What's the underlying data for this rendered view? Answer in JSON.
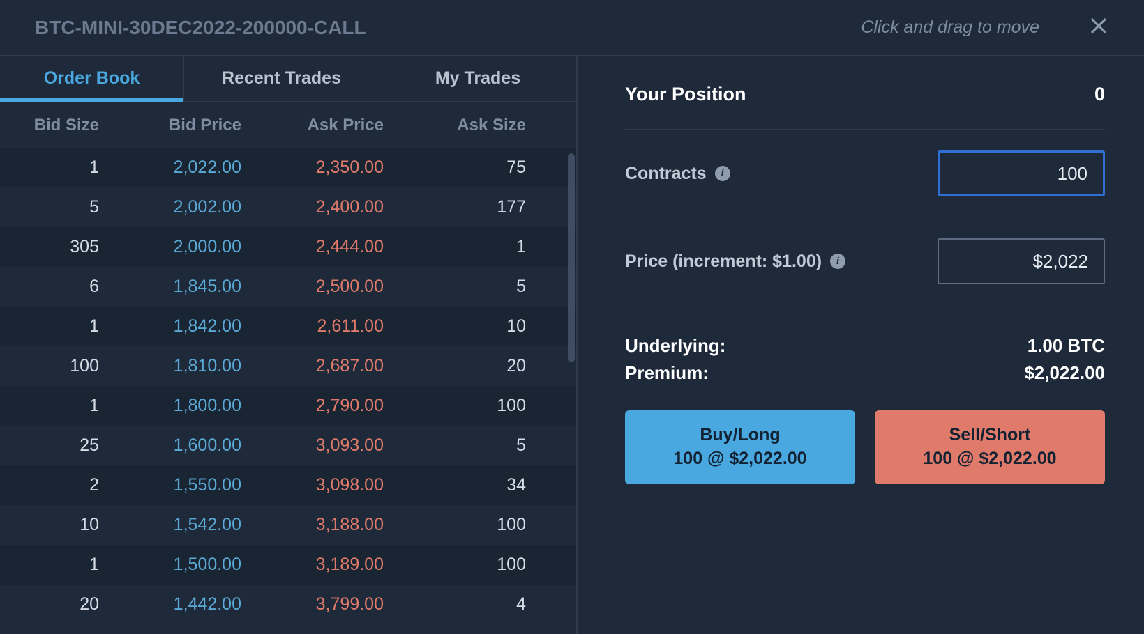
{
  "colors": {
    "background": "#1e2a3a",
    "row_alt": "#1a2533",
    "border": "#2d3b4d",
    "text_muted": "#7f8da2",
    "bid": "#5aa9d6",
    "ask": "#e07a6a",
    "accent": "#4aa8e0",
    "sell": "#e07a6a",
    "white": "#ffffff"
  },
  "header": {
    "title": "BTC-MINI-30DEC2022-200000-CALL",
    "drag_hint": "Click and drag to move"
  },
  "tabs": {
    "order_book": "Order Book",
    "recent_trades": "Recent Trades",
    "my_trades": "My Trades"
  },
  "order_book": {
    "columns": {
      "bid_size": "Bid Size",
      "bid_price": "Bid Price",
      "ask_price": "Ask Price",
      "ask_size": "Ask Size"
    },
    "rows": [
      {
        "bid_size": "1",
        "bid_price": "2,022.00",
        "ask_price": "2,350.00",
        "ask_size": "75"
      },
      {
        "bid_size": "5",
        "bid_price": "2,002.00",
        "ask_price": "2,400.00",
        "ask_size": "177"
      },
      {
        "bid_size": "305",
        "bid_price": "2,000.00",
        "ask_price": "2,444.00",
        "ask_size": "1"
      },
      {
        "bid_size": "6",
        "bid_price": "1,845.00",
        "ask_price": "2,500.00",
        "ask_size": "5"
      },
      {
        "bid_size": "1",
        "bid_price": "1,842.00",
        "ask_price": "2,611.00",
        "ask_size": "10"
      },
      {
        "bid_size": "100",
        "bid_price": "1,810.00",
        "ask_price": "2,687.00",
        "ask_size": "20"
      },
      {
        "bid_size": "1",
        "bid_price": "1,800.00",
        "ask_price": "2,790.00",
        "ask_size": "100"
      },
      {
        "bid_size": "25",
        "bid_price": "1,600.00",
        "ask_price": "3,093.00",
        "ask_size": "5"
      },
      {
        "bid_size": "2",
        "bid_price": "1,550.00",
        "ask_price": "3,098.00",
        "ask_size": "34"
      },
      {
        "bid_size": "10",
        "bid_price": "1,542.00",
        "ask_price": "3,188.00",
        "ask_size": "100"
      },
      {
        "bid_size": "1",
        "bid_price": "1,500.00",
        "ask_price": "3,189.00",
        "ask_size": "100"
      },
      {
        "bid_size": "20",
        "bid_price": "1,442.00",
        "ask_price": "3,799.00",
        "ask_size": "4"
      }
    ]
  },
  "order_form": {
    "position_label": "Your Position",
    "position_value": "0",
    "contracts_label": "Contracts",
    "contracts_value": "100",
    "price_label": "Price (increment: $1.00)",
    "price_value": "$2,022",
    "underlying_label": "Underlying:",
    "underlying_value": "1.00 BTC",
    "premium_label": "Premium:",
    "premium_value": "$2,022.00",
    "buy_label": "Buy/Long",
    "buy_sub": "100 @ $2,022.00",
    "sell_label": "Sell/Short",
    "sell_sub": "100 @ $2,022.00"
  }
}
